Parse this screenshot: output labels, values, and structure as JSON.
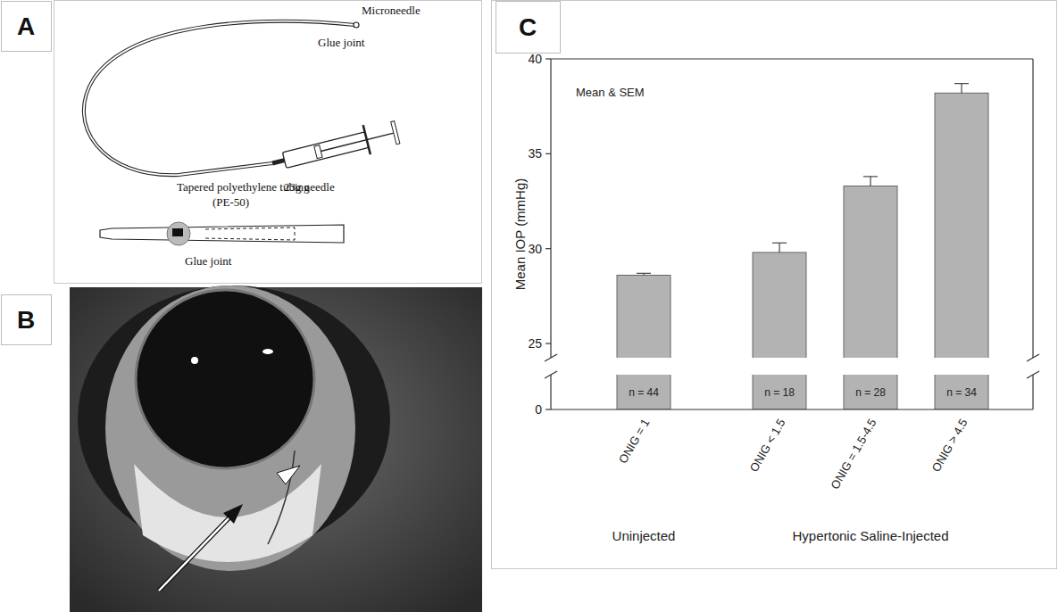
{
  "panel_labels": [
    "A",
    "B",
    "C"
  ],
  "diagram": {
    "labels": [
      "Microneedle",
      "Glue joint",
      "Tapered polyethylene tubing",
      "(PE-50)",
      "23g needle",
      "Glue joint"
    ]
  },
  "chart_data": {
    "type": "bar",
    "categories": [
      "ONIG = 1",
      "ONIG < 1.5",
      "ONIG = 1.5-4.5",
      "ONIG > 4.5"
    ],
    "values": [
      28.6,
      29.8,
      33.3,
      38.2
    ],
    "errors": [
      0.1,
      0.5,
      0.5,
      0.5
    ],
    "n_labels": [
      "n = 44",
      "n = 18",
      "n = 28",
      "n = 34"
    ],
    "group_labels": [
      "Uninjected",
      "Hypertonic Saline-Injected"
    ],
    "annotations": [
      "Mean & SEM"
    ],
    "y_label": "Mean IOP (mmHg)",
    "color": "#b3b3b3",
    "ylim": [
      0,
      40
    ],
    "yticks": [
      0,
      25,
      30,
      35,
      40
    ],
    "grid": false
  }
}
